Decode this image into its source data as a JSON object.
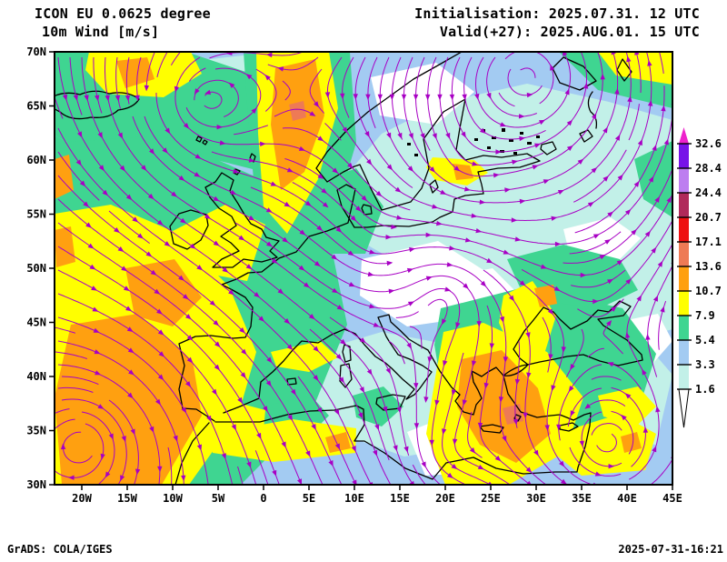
{
  "header": {
    "model": "ICON EU 0.0625 degree",
    "field": "10m Wind [m/s]",
    "init": "Initialisation: 2025.07.31. 12 UTC",
    "valid": "Valid(+27): 2025.AUG.01. 15 UTC"
  },
  "footer": {
    "credit": "GrADS: COLA/IGES",
    "timestamp": "2025-07-31-16:21"
  },
  "axes": {
    "lat_labels": [
      "70N",
      "65N",
      "60N",
      "55N",
      "50N",
      "45N",
      "40N",
      "35N",
      "30N"
    ],
    "lon_labels": [
      "20W",
      "15W",
      "10W",
      "5W",
      "0",
      "5E",
      "10E",
      "15E",
      "20E",
      "25E",
      "30E",
      "35E",
      "40E",
      "45E"
    ]
  },
  "legend": {
    "values_top_to_bottom": [
      "32.6",
      "28.4",
      "24.4",
      "20.7",
      "17.1",
      "13.6",
      "10.7",
      "7.9",
      "5.4",
      "3.3",
      "1.6"
    ],
    "colors_top_to_bottom": [
      "#7713e8",
      "#bd7ef0",
      "#b02a5a",
      "#ee1111",
      "#ee7a55",
      "#ffa010",
      "#ffff00",
      "#3fd591",
      "#a3cbf2",
      "#c2f0e8"
    ],
    "over_color": "#ee22cc",
    "under_color": "#ffffff"
  },
  "map_style": {
    "streamline_color": "#a800c4",
    "coast_color": "#000000",
    "sea_base_color": "#a3cbf2"
  },
  "chart_data": {
    "type": "heatmap",
    "title": "10m Wind [m/s]",
    "model": "ICON EU 0.0625 degree",
    "initialisation": "2025.07.31. 12 UTC",
    "valid": "2025.AUG.01. 15 UTC",
    "forecast_hour": 27,
    "units": "m/s",
    "lon_ticks": [
      "20W",
      "15W",
      "10W",
      "5W",
      "0",
      "5E",
      "10E",
      "15E",
      "20E",
      "25E",
      "30E",
      "35E",
      "40E",
      "45E"
    ],
    "lat_ticks": [
      "70N",
      "65N",
      "60N",
      "55N",
      "50N",
      "45N",
      "40N",
      "35N",
      "30N"
    ],
    "wind_speed_levels_ms": [
      1.6,
      3.3,
      5.4,
      7.9,
      10.7,
      13.6,
      17.1,
      20.7,
      24.4,
      28.4,
      32.6
    ],
    "renderer": "GrADS: COLA/IGES",
    "generated": "2025-07-31-16:21"
  }
}
